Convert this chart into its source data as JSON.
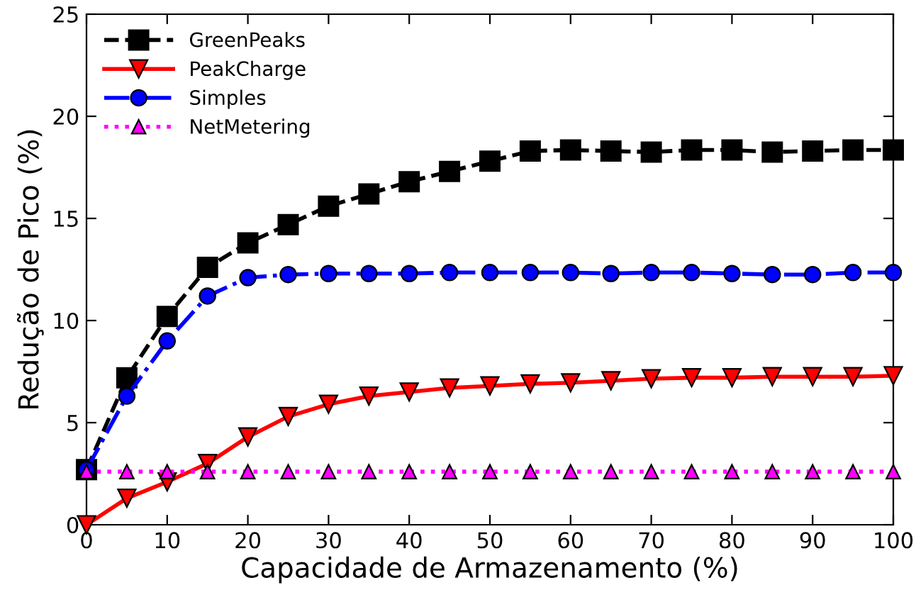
{
  "chart_data": {
    "type": "line",
    "xlabel": "Capacidade de Armazenamento (%)",
    "ylabel": "Redução de Pico (%)",
    "x": [
      0,
      5,
      10,
      15,
      20,
      25,
      30,
      35,
      40,
      45,
      50,
      55,
      60,
      65,
      70,
      75,
      80,
      85,
      90,
      95,
      100
    ],
    "series": [
      {
        "name": "GreenPeaks",
        "color": "#000000",
        "marker": "square",
        "line_style": "dashed",
        "values": [
          2.7,
          7.2,
          10.2,
          12.6,
          13.8,
          14.7,
          15.6,
          16.2,
          16.8,
          17.3,
          17.8,
          18.3,
          18.35,
          18.3,
          18.25,
          18.35,
          18.35,
          18.25,
          18.3,
          18.35,
          18.35
        ]
      },
      {
        "name": "PeakCharge",
        "color": "#ff0000",
        "marker": "triangle_down",
        "line_style": "solid",
        "values": [
          0,
          1.3,
          2.1,
          3.0,
          4.3,
          5.3,
          5.9,
          6.3,
          6.5,
          6.7,
          6.8,
          6.9,
          6.95,
          7.05,
          7.15,
          7.2,
          7.2,
          7.25,
          7.25,
          7.25,
          7.3
        ]
      },
      {
        "name": "Simples",
        "color": "#0000ff",
        "marker": "circle",
        "line_style": "dashdot",
        "values": [
          2.7,
          6.3,
          9.0,
          11.2,
          12.1,
          12.25,
          12.3,
          12.3,
          12.3,
          12.35,
          12.35,
          12.35,
          12.35,
          12.3,
          12.35,
          12.35,
          12.3,
          12.25,
          12.25,
          12.35,
          12.35
        ]
      },
      {
        "name": "NetMetering",
        "color": "#ff00ff",
        "marker": "triangle",
        "line_style": "dotted",
        "values": [
          2.6,
          2.6,
          2.6,
          2.6,
          2.6,
          2.6,
          2.6,
          2.6,
          2.6,
          2.6,
          2.6,
          2.6,
          2.6,
          2.6,
          2.6,
          2.6,
          2.6,
          2.6,
          2.6,
          2.6,
          2.6
        ]
      }
    ],
    "xlim": [
      0,
      100
    ],
    "ylim": [
      0,
      25
    ],
    "xticks": [
      0,
      10,
      20,
      30,
      40,
      50,
      60,
      70,
      80,
      90,
      100
    ],
    "yticks": [
      0,
      5,
      10,
      15,
      20,
      25
    ],
    "grid": false,
    "legend": "top left"
  }
}
